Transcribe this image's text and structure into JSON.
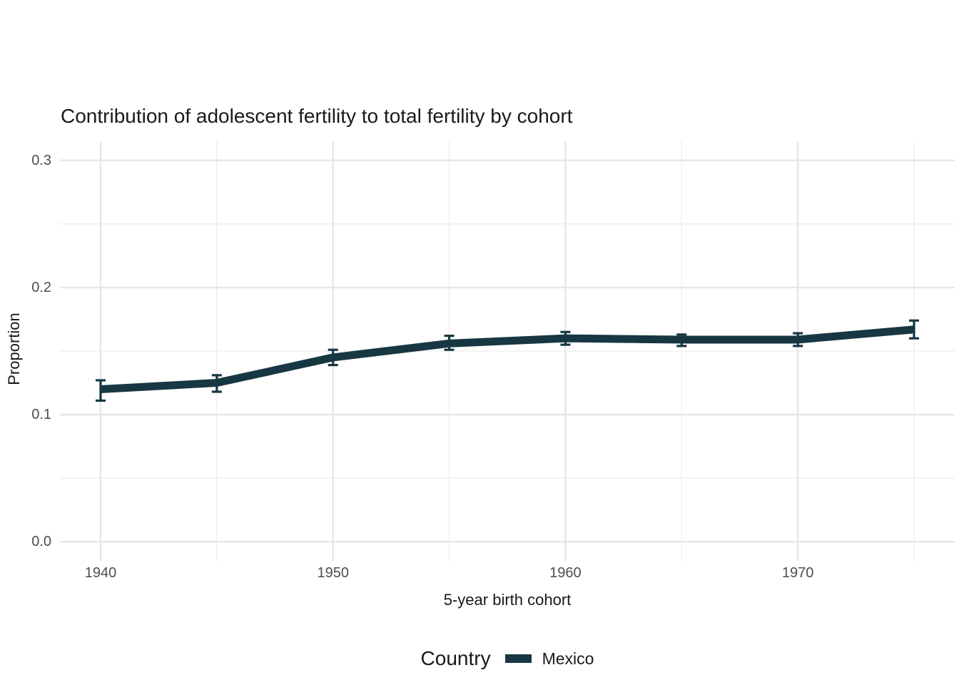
{
  "title": "Contribution of adolescent fertility to total fertility by cohort",
  "colors": {
    "series_line": "#173742",
    "grid_major": "#e7e7e7",
    "grid_minor": "#ededed",
    "tick_label": "#4d4d4d",
    "text": "#1a1a1a",
    "background": "#ffffff"
  },
  "chart_data": {
    "type": "line",
    "title": "Contribution of adolescent fertility to total fertility by cohort",
    "xlabel": "5-year birth cohort",
    "ylabel": "Proportion",
    "x": [
      1940,
      1945,
      1950,
      1955,
      1960,
      1965,
      1970,
      1975
    ],
    "series": [
      {
        "name": "Mexico",
        "color": "#173742",
        "values": [
          0.12,
          0.125,
          0.145,
          0.156,
          0.16,
          0.159,
          0.159,
          0.167
        ],
        "ci_lower": [
          0.111,
          0.118,
          0.139,
          0.151,
          0.155,
          0.154,
          0.154,
          0.16
        ],
        "ci_upper": [
          0.127,
          0.131,
          0.151,
          0.162,
          0.165,
          0.163,
          0.164,
          0.174
        ]
      }
    ],
    "x_tick_labels": [
      "1940",
      "1950",
      "1960",
      "1970"
    ],
    "y_tick_labels": [
      "0.0",
      "0.1",
      "0.2",
      "0.3"
    ],
    "x_ticks_major": [
      1940,
      1950,
      1960,
      1970
    ],
    "x_ticks_minor": [
      1945,
      1955,
      1965,
      1975
    ],
    "y_ticks_major": [
      0.0,
      0.1,
      0.2,
      0.3
    ],
    "y_ticks_minor": [
      0.05,
      0.15,
      0.25
    ],
    "x_range": [
      1938.25,
      1976.75
    ],
    "y_range": [
      -0.015,
      0.315
    ],
    "grid": true,
    "error_bars": true,
    "legend": {
      "title": "Country",
      "position": "bottom",
      "entries": [
        {
          "label": "Mexico",
          "color": "#173742"
        }
      ]
    }
  }
}
